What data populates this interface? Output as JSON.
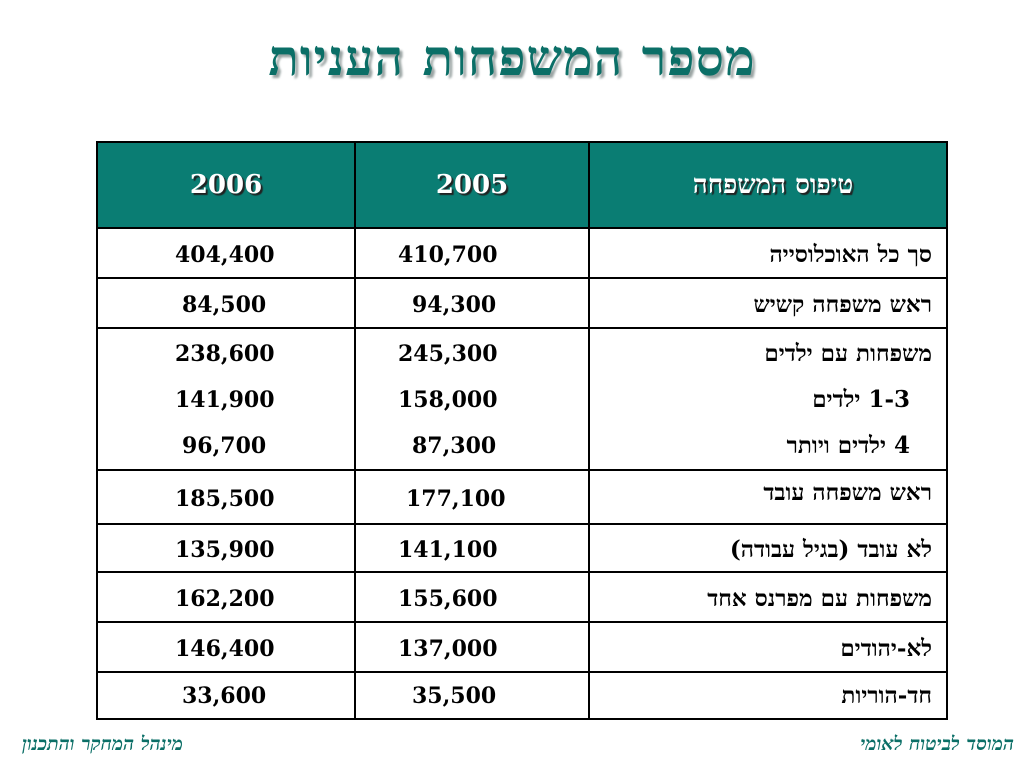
{
  "title": "מספר המשפחות העניות",
  "table": {
    "headers": {
      "family_type": "טיפוס המשפחה",
      "y2005": "2005",
      "y2006": "2006"
    },
    "rows": [
      {
        "label": "סך כל האוכלוסייה",
        "v2005": "410,700",
        "v2006": "404,400"
      },
      {
        "label": "ראש משפחה קשיש",
        "v2005": "94,300",
        "v2006": "84,500"
      },
      {
        "label": "משפחות עם ילדים",
        "v2005": "245,300",
        "v2006": "238,600",
        "sub": [
          {
            "label": "1-3 ילדים",
            "v2005": "158,000",
            "v2006": "141,900"
          },
          {
            "label": "4 ילדים ויותר",
            "v2005": "87,300",
            "v2006": "96,700"
          }
        ]
      },
      {
        "label": "ראש משפחה עובד",
        "v2005": "177,100",
        "v2006": "185,500"
      },
      {
        "label": "לא עובד (בגיל עבודה)",
        "v2005": "141,100",
        "v2006": "135,900"
      },
      {
        "label": "משפחות עם מפרנס אחד",
        "v2005": "155,600",
        "v2006": "162,200"
      },
      {
        "label": "לא-יהודים",
        "v2005": "137,000",
        "v2006": "146,400"
      },
      {
        "label": "חד-הוריות",
        "v2005": "35,500",
        "v2006": "33,600"
      }
    ]
  },
  "footer": {
    "right": "המוסד לביטוח לאומי",
    "left": "מינהל המחקר והתכנון"
  }
}
